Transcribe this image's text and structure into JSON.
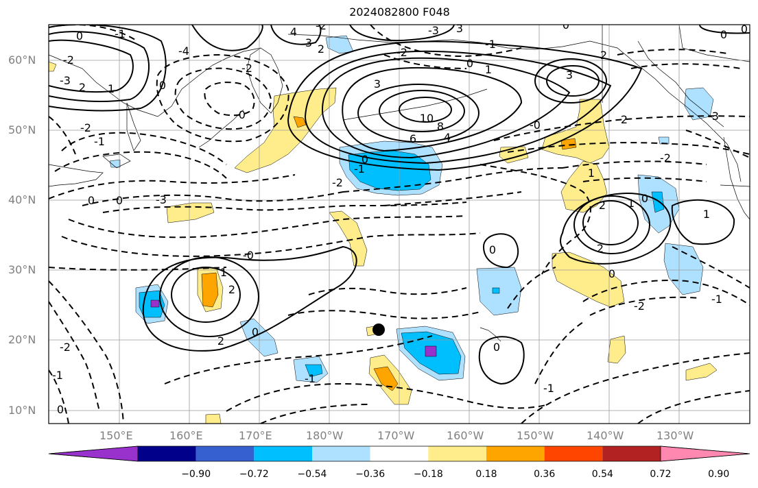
{
  "title": "2024082800 F048",
  "lat_labels": [
    "60°N",
    "50°N",
    "40°N",
    "30°N",
    "20°N",
    "10°N"
  ],
  "lon_labels": [
    "150°E",
    "160°E",
    "170°E",
    "180°W",
    "170°W",
    "160°W",
    "150°W",
    "140°W",
    "130°W"
  ],
  "colorbar": {
    "ticks": [
      "−0.90",
      "−0.72",
      "−0.54",
      "−0.36",
      "−0.18",
      "0.18",
      "0.36",
      "0.54",
      "0.72",
      "0.90"
    ],
    "colors": [
      "#9932cc",
      "#00008b",
      "#3660d0",
      "#00bfff",
      "#aee0ff",
      "#ffffff",
      "#ffec8b",
      "#ffa500",
      "#ff4500",
      "#b22222",
      "#ff88b0"
    ]
  },
  "contour_labels": [
    "0",
    "-1",
    "-2",
    "-3",
    "-4",
    "4",
    "3",
    "2",
    "1",
    "10",
    "8",
    "6",
    "-4",
    "-3",
    "-2",
    "-1",
    "0",
    "-0",
    "1",
    "2",
    "3",
    "-2",
    "-3",
    "-1",
    "0",
    "-0",
    "1",
    "2",
    "3",
    "0",
    "-1",
    "-2",
    "-1",
    "0",
    "1",
    "2",
    "0",
    "-1",
    "-2",
    "-2",
    "0",
    "-1",
    "1",
    "2",
    "0",
    "-2",
    "1",
    "-1",
    "-3",
    "-2"
  ],
  "marker": {
    "type": "black-dot"
  }
}
